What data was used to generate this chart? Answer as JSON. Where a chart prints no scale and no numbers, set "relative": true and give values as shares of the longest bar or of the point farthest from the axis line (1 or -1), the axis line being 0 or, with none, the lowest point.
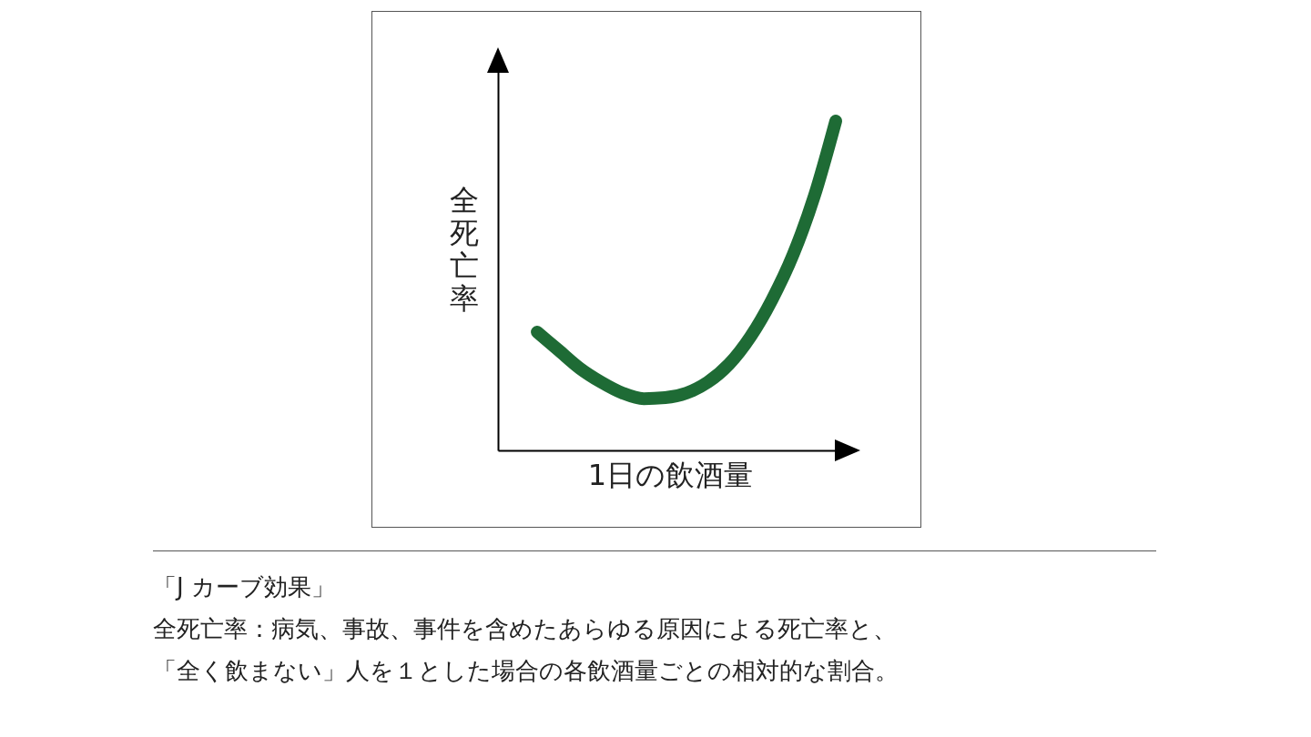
{
  "chart_data": {
    "type": "line",
    "relative": true,
    "title": "「J カーブ効果」",
    "xlabel": "1日の飲酒量",
    "ylabel": "全死亡率",
    "annotations": [
      "全死亡率：病気、事故、事件を含めたあらゆる原因による死亡率と、",
      "「全く飲まない」人を１とした場合の各飲酒量ごとの相対的な割合。"
    ],
    "categories": [
      null,
      null,
      null,
      null,
      null,
      null,
      null,
      null,
      null,
      null,
      null,
      null,
      null,
      null,
      null
    ],
    "series": [
      {
        "color": "#1e6b35",
        "values": [
          0.359,
          0.304,
          0.249,
          0.207,
          0.174,
          0.157,
          0.16,
          0.174,
          0.207,
          0.262,
          0.345,
          0.456,
          0.594,
          0.773,
          1.0
        ]
      }
    ],
    "grid": false,
    "marker": "none",
    "line_style": "solid"
  }
}
